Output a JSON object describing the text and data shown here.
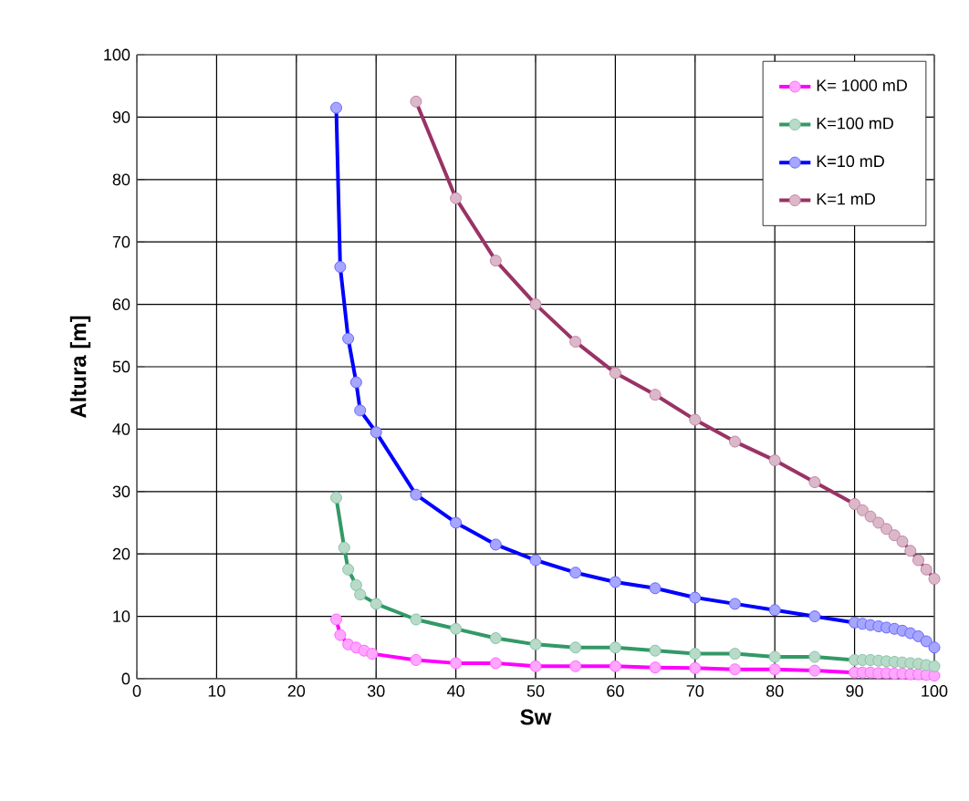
{
  "chart_data": {
    "type": "line",
    "xlabel": "Sw",
    "ylabel": "Altura [m]",
    "xlim": [
      0,
      100
    ],
    "ylim": [
      0,
      100
    ],
    "xticks": [
      0,
      10,
      20,
      30,
      40,
      50,
      60,
      70,
      80,
      90,
      100
    ],
    "yticks": [
      0,
      10,
      20,
      30,
      40,
      50,
      60,
      70,
      80,
      90,
      100
    ],
    "grid": true,
    "legend": "top right",
    "marker": "circle",
    "series": [
      {
        "name": "K= 1000 mD",
        "color": "#ff00ff",
        "x": [
          25,
          25.5,
          26.5,
          27.5,
          28.5,
          29.5,
          35,
          40,
          45,
          50,
          55,
          60,
          65,
          70,
          75,
          80,
          85,
          90,
          91,
          92,
          93,
          94,
          95,
          96,
          97,
          98,
          99,
          100
        ],
        "values": [
          9.5,
          7,
          5.5,
          5,
          4.5,
          4,
          3,
          2.5,
          2.5,
          2,
          2,
          2,
          1.8,
          1.7,
          1.5,
          1.5,
          1.3,
          1,
          1,
          1,
          0.9,
          0.9,
          0.8,
          0.8,
          0.7,
          0.7,
          0.6,
          0.5
        ]
      },
      {
        "name": "K=100 mD",
        "color": "#339966",
        "x": [
          25,
          26,
          26.5,
          27.5,
          28,
          30,
          35,
          40,
          45,
          50,
          55,
          60,
          65,
          70,
          75,
          80,
          85,
          90,
          91,
          92,
          93,
          94,
          95,
          96,
          97,
          98,
          99,
          100
        ],
        "values": [
          29,
          21,
          17.5,
          15,
          13.5,
          12,
          9.5,
          8,
          6.5,
          5.5,
          5,
          5,
          4.5,
          4,
          4,
          3.5,
          3.5,
          3,
          3,
          3,
          2.9,
          2.8,
          2.7,
          2.6,
          2.5,
          2.4,
          2.2,
          2
        ]
      },
      {
        "name": "K=10 mD",
        "color": "#0000ff",
        "x": [
          25,
          25.5,
          26.5,
          27.5,
          28,
          30,
          35,
          40,
          45,
          50,
          55,
          60,
          65,
          70,
          75,
          80,
          85,
          90,
          91,
          92,
          93,
          94,
          95,
          96,
          97,
          98,
          99,
          100
        ],
        "values": [
          91.5,
          66,
          54.5,
          47.5,
          43,
          39.5,
          29.5,
          25,
          21.5,
          19,
          17,
          15.5,
          14.5,
          13,
          12,
          11,
          10,
          9,
          8.8,
          8.6,
          8.4,
          8.2,
          8,
          7.7,
          7.3,
          6.8,
          6,
          5
        ]
      },
      {
        "name": "K=1 mD",
        "color": "#993366",
        "x": [
          35,
          40,
          45,
          50,
          55,
          60,
          65,
          70,
          75,
          80,
          85,
          90,
          91,
          92,
          93,
          94,
          95,
          96,
          97,
          98,
          99,
          100
        ],
        "values": [
          92.5,
          77,
          67,
          60,
          54,
          49,
          45.5,
          41.5,
          38,
          35,
          31.5,
          28,
          27,
          26,
          25,
          24,
          23,
          22,
          20.5,
          19,
          17.5,
          16
        ]
      }
    ]
  }
}
